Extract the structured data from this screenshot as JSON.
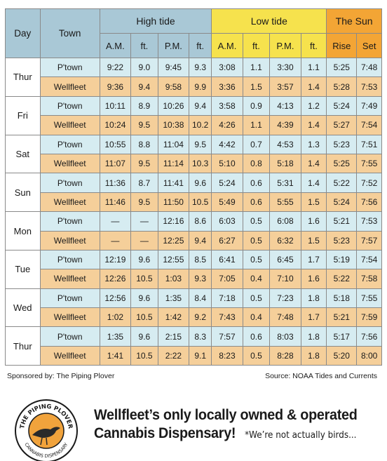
{
  "header": {
    "day": "Day",
    "town": "Town",
    "high_tide": "High tide",
    "low_tide": "Low tide",
    "the_sun": "The Sun",
    "am": "A.M.",
    "ft": "ft.",
    "pm": "P.M.",
    "rise": "Rise",
    "set": "Set"
  },
  "days": [
    {
      "day": "Thur",
      "rows": [
        {
          "town": "P'town",
          "high_am": "9:22",
          "high_am_ft": "9.0",
          "high_pm": "9:45",
          "high_pm_ft": "9.3",
          "low_am": "3:08",
          "low_am_ft": "1.1",
          "low_pm": "3:30",
          "low_pm_ft": "1.1",
          "rise": "5:25",
          "set": "7:48"
        },
        {
          "town": "Wellfleet",
          "high_am": "9:36",
          "high_am_ft": "9.4",
          "high_pm": "9:58",
          "high_pm_ft": "9.9",
          "low_am": "3:36",
          "low_am_ft": "1.5",
          "low_pm": "3:57",
          "low_pm_ft": "1.4",
          "rise": "5:28",
          "set": "7:53"
        }
      ]
    },
    {
      "day": "Fri",
      "rows": [
        {
          "town": "P'town",
          "high_am": "10:11",
          "high_am_ft": "8.9",
          "high_pm": "10:26",
          "high_pm_ft": "9.4",
          "low_am": "3:58",
          "low_am_ft": "0.9",
          "low_pm": "4:13",
          "low_pm_ft": "1.2",
          "rise": "5:24",
          "set": "7:49"
        },
        {
          "town": "Wellfleet",
          "high_am": "10:24",
          "high_am_ft": "9.5",
          "high_pm": "10:38",
          "high_pm_ft": "10.2",
          "low_am": "4:26",
          "low_am_ft": "1.1",
          "low_pm": "4:39",
          "low_pm_ft": "1.4",
          "rise": "5:27",
          "set": "7:54"
        }
      ]
    },
    {
      "day": "Sat",
      "rows": [
        {
          "town": "P'town",
          "high_am": "10:55",
          "high_am_ft": "8.8",
          "high_pm": "11:04",
          "high_pm_ft": "9.5",
          "low_am": "4:42",
          "low_am_ft": "0.7",
          "low_pm": "4:53",
          "low_pm_ft": "1.3",
          "rise": "5:23",
          "set": "7:51"
        },
        {
          "town": "Wellfleet",
          "high_am": "11:07",
          "high_am_ft": "9.5",
          "high_pm": "11:14",
          "high_pm_ft": "10.3",
          "low_am": "5:10",
          "low_am_ft": "0.8",
          "low_pm": "5:18",
          "low_pm_ft": "1.4",
          "rise": "5:25",
          "set": "7:55"
        }
      ]
    },
    {
      "day": "Sun",
      "rows": [
        {
          "town": "P'town",
          "high_am": "11:36",
          "high_am_ft": "8.7",
          "high_pm": "11:41",
          "high_pm_ft": "9.6",
          "low_am": "5:24",
          "low_am_ft": "0.6",
          "low_pm": "5:31",
          "low_pm_ft": "1.4",
          "rise": "5:22",
          "set": "7:52"
        },
        {
          "town": "Wellfleet",
          "high_am": "11:46",
          "high_am_ft": "9.5",
          "high_pm": "11:50",
          "high_pm_ft": "10.5",
          "low_am": "5:49",
          "low_am_ft": "0.6",
          "low_pm": "5:55",
          "low_pm_ft": "1.5",
          "rise": "5:24",
          "set": "7:56"
        }
      ]
    },
    {
      "day": "Mon",
      "rows": [
        {
          "town": "P'town",
          "high_am": "—",
          "high_am_ft": "—",
          "high_pm": "12:16",
          "high_pm_ft": "8.6",
          "low_am": "6:03",
          "low_am_ft": "0.5",
          "low_pm": "6:08",
          "low_pm_ft": "1.6",
          "rise": "5:21",
          "set": "7:53"
        },
        {
          "town": "Wellfleet",
          "high_am": "—",
          "high_am_ft": "—",
          "high_pm": "12:25",
          "high_pm_ft": "9.4",
          "low_am": "6:27",
          "low_am_ft": "0.5",
          "low_pm": "6:32",
          "low_pm_ft": "1.5",
          "rise": "5:23",
          "set": "7:57"
        }
      ]
    },
    {
      "day": "Tue",
      "rows": [
        {
          "town": "P'town",
          "high_am": "12:19",
          "high_am_ft": "9.6",
          "high_pm": "12:55",
          "high_pm_ft": "8.5",
          "low_am": "6:41",
          "low_am_ft": "0.5",
          "low_pm": "6:45",
          "low_pm_ft": "1.7",
          "rise": "5:19",
          "set": "7:54"
        },
        {
          "town": "Wellfleet",
          "high_am": "12:26",
          "high_am_ft": "10.5",
          "high_pm": "1:03",
          "high_pm_ft": "9.3",
          "low_am": "7:05",
          "low_am_ft": "0.4",
          "low_pm": "7:10",
          "low_pm_ft": "1.6",
          "rise": "5:22",
          "set": "7:58"
        }
      ]
    },
    {
      "day": "Wed",
      "rows": [
        {
          "town": "P'town",
          "high_am": "12:56",
          "high_am_ft": "9.6",
          "high_pm": "1:35",
          "high_pm_ft": "8.4",
          "low_am": "7:18",
          "low_am_ft": "0.5",
          "low_pm": "7:23",
          "low_pm_ft": "1.8",
          "rise": "5:18",
          "set": "7:55"
        },
        {
          "town": "Wellfleet",
          "high_am": "1:02",
          "high_am_ft": "10.5",
          "high_pm": "1:42",
          "high_pm_ft": "9.2",
          "low_am": "7:43",
          "low_am_ft": "0.4",
          "low_pm": "7:48",
          "low_pm_ft": "1.7",
          "rise": "5:21",
          "set": "7:59"
        }
      ]
    },
    {
      "day": "Thur",
      "rows": [
        {
          "town": "P'town",
          "high_am": "1:35",
          "high_am_ft": "9.6",
          "high_pm": "2:15",
          "high_pm_ft": "8.3",
          "low_am": "7:57",
          "low_am_ft": "0.6",
          "low_pm": "8:03",
          "low_pm_ft": "1.8",
          "rise": "5:17",
          "set": "7:56"
        },
        {
          "town": "Wellfleet",
          "high_am": "1:41",
          "high_am_ft": "10.5",
          "high_pm": "2:22",
          "high_pm_ft": "9.1",
          "low_am": "8:23",
          "low_am_ft": "0.5",
          "low_pm": "8:28",
          "low_pm_ft": "1.8",
          "rise": "5:20",
          "set": "8:00"
        }
      ]
    }
  ],
  "footer": {
    "sponsor": "Sponsored by: The Piping Plover",
    "source": "Source: NOAA Tides and Currents"
  },
  "ad": {
    "logo_top_text": "THE PIPING PLOVER",
    "logo_bottom_text": "CANNABIS DISPENSARY",
    "headline_line1": "Wellfleet’s only locally owned & operated",
    "headline_line2": "Cannabis Dispensary!",
    "note": "*We’re not actually birds..."
  },
  "colors": {
    "header_blue": "#a9c8d6",
    "header_yellow": "#f6e24d",
    "header_orange": "#f3a535",
    "ptown_row": "#d6ecf1",
    "wellfleet_row": "#f5cf9a"
  }
}
